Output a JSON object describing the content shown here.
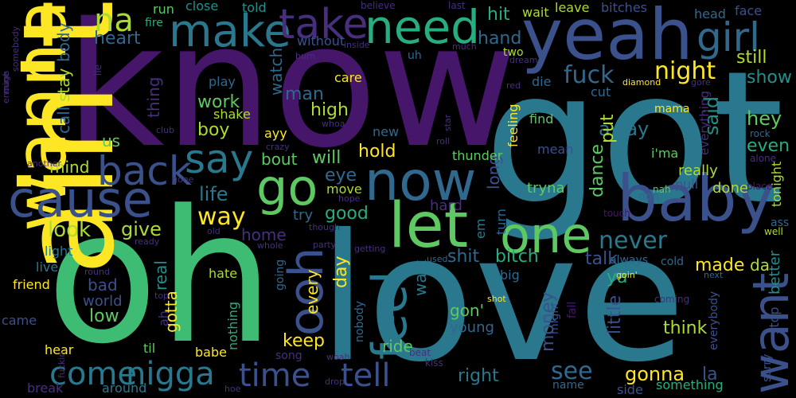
{
  "palette": {
    "background": "#000000",
    "dark_purple": "#46166b",
    "purple": "#472f7d",
    "indigo": "#3b518b",
    "blue": "#31688e",
    "teal": "#21908d",
    "teal_light": "#27ad81",
    "green": "#5ec962",
    "lime": "#addc30",
    "yellow": "#fde725"
  },
  "words": [
    {
      "text": "know",
      "color": "#46166b"
    },
    {
      "text": "got",
      "color": "#2a788e"
    },
    {
      "text": "oh",
      "color": "#3ebc73"
    },
    {
      "text": "love",
      "color": "#2a788e"
    },
    {
      "text": "yeah",
      "color": "#3b518b"
    },
    {
      "text": "ain't",
      "color": "#fde725"
    },
    {
      "text": "wanna",
      "color": "#fde725"
    },
    {
      "text": "cause",
      "color": "#3b518b"
    },
    {
      "text": "baby",
      "color": "#3b518b"
    },
    {
      "text": "let",
      "color": "#5ec962"
    },
    {
      "text": "one",
      "color": "#5ec962"
    },
    {
      "text": "now",
      "color": "#31688e"
    },
    {
      "text": "go",
      "color": "#5ec962"
    },
    {
      "text": "need",
      "color": "#27ad81"
    },
    {
      "text": "make",
      "color": "#2a788e"
    },
    {
      "text": "take",
      "color": "#472f7d"
    },
    {
      "text": "want",
      "color": "#3b518b"
    },
    {
      "text": "feel",
      "color": "#2a788e"
    },
    {
      "text": "ooh",
      "color": "#3b518b"
    },
    {
      "text": "say",
      "color": "#2a788e"
    },
    {
      "text": "back",
      "color": "#3b518b"
    },
    {
      "text": "girl",
      "color": "#31688e"
    },
    {
      "text": "na",
      "color": "#addc30"
    },
    {
      "text": "come",
      "color": "#2a788e"
    },
    {
      "text": "nigga",
      "color": "#2a788e"
    },
    {
      "text": "time",
      "color": "#3b518b"
    },
    {
      "text": "tell",
      "color": "#3b518b"
    },
    {
      "text": "never",
      "color": "#2a788e"
    },
    {
      "text": "night",
      "color": "#fde725"
    },
    {
      "text": "fuck",
      "color": "#31688e"
    },
    {
      "text": "way",
      "color": "#fde725"
    },
    {
      "text": "heart",
      "color": "#31688e"
    },
    {
      "text": "life",
      "color": "#2a788e"
    },
    {
      "text": "look",
      "color": "#addc30"
    },
    {
      "text": "give",
      "color": "#addc30"
    },
    {
      "text": "see",
      "color": "#31688e"
    },
    {
      "text": "gonna",
      "color": "#fde725"
    },
    {
      "text": "right",
      "color": "#2a788e"
    },
    {
      "text": "keep",
      "color": "#fde725"
    },
    {
      "text": "good",
      "color": "#27ad81"
    },
    {
      "text": "bitch",
      "color": "#27ad81"
    },
    {
      "text": "shit",
      "color": "#31688e"
    },
    {
      "text": "hold",
      "color": "#fde725"
    },
    {
      "text": "high",
      "color": "#addc30"
    },
    {
      "text": "man",
      "color": "#31688e"
    },
    {
      "text": "work",
      "color": "#5ec962"
    },
    {
      "text": "boy",
      "color": "#addc30"
    },
    {
      "text": "us",
      "color": "#5ec962"
    },
    {
      "text": "mind",
      "color": "#addc30"
    },
    {
      "text": "will",
      "color": "#5ec962"
    },
    {
      "text": "eye",
      "color": "#31688e"
    },
    {
      "text": "away",
      "color": "#2a788e"
    },
    {
      "text": "put",
      "color": "#addc30"
    },
    {
      "text": "said",
      "color": "#21908d"
    },
    {
      "text": "hey",
      "color": "#5ec962"
    },
    {
      "text": "even",
      "color": "#27ad81"
    },
    {
      "text": "still",
      "color": "#addc30"
    },
    {
      "text": "show",
      "color": "#21908d"
    },
    {
      "text": "hit",
      "color": "#27ad81"
    },
    {
      "text": "hand",
      "color": "#31688e"
    },
    {
      "text": "stay",
      "color": "#addc30"
    },
    {
      "text": "body",
      "color": "#31688e"
    },
    {
      "text": "call",
      "color": "#31688e"
    },
    {
      "text": "thing",
      "color": "#472f7d"
    },
    {
      "text": "watch",
      "color": "#31688e"
    },
    {
      "text": "dance",
      "color": "#5ec962"
    },
    {
      "text": "long",
      "color": "#3b518b"
    },
    {
      "text": "walk",
      "color": "#2a788e"
    },
    {
      "text": "talk",
      "color": "#3b518b"
    },
    {
      "text": "made",
      "color": "#fde725"
    },
    {
      "text": "little",
      "color": "#3b518b"
    },
    {
      "text": "money",
      "color": "#3b518b"
    },
    {
      "text": "think",
      "color": "#addc30"
    },
    {
      "text": "every",
      "color": "#fde725"
    },
    {
      "text": "day",
      "color": "#fde725"
    },
    {
      "text": "gotta",
      "color": "#fde725"
    },
    {
      "text": "real",
      "color": "#21908d"
    },
    {
      "text": "low",
      "color": "#5ec962"
    },
    {
      "text": "bad",
      "color": "#3b518b"
    },
    {
      "text": "world",
      "color": "#3b518b"
    },
    {
      "text": "home",
      "color": "#472f7d"
    },
    {
      "text": "bout",
      "color": "#5ec962"
    },
    {
      "text": "gon'",
      "color": "#5ec962"
    },
    {
      "text": "young",
      "color": "#31688e"
    },
    {
      "text": "ride",
      "color": "#5ec962"
    },
    {
      "text": "better",
      "color": "#21908d"
    },
    {
      "text": "stop",
      "color": "#3b518b"
    },
    {
      "text": "tonight",
      "color": "#addc30"
    },
    {
      "text": "la",
      "color": "#3b518b"
    },
    {
      "text": "ya",
      "color": "#27ad81"
    },
    {
      "text": "da",
      "color": "#addc30"
    },
    {
      "text": "done",
      "color": "#addc30"
    },
    {
      "text": "really",
      "color": "#addc30"
    },
    {
      "text": "pull",
      "color": "#3b518b"
    },
    {
      "text": "tryna",
      "color": "#5ec962"
    },
    {
      "text": "turn",
      "color": "#31688e"
    },
    {
      "text": "em",
      "color": "#2a788e"
    },
    {
      "text": "hard",
      "color": "#472f7d"
    },
    {
      "text": "try",
      "color": "#31688e"
    },
    {
      "text": "move",
      "color": "#addc30"
    },
    {
      "text": "thunder",
      "color": "#5ec962"
    },
    {
      "text": "new",
      "color": "#31688e"
    },
    {
      "text": "ayy",
      "color": "#fde725"
    },
    {
      "text": "shake",
      "color": "#addc30"
    },
    {
      "text": "play",
      "color": "#31688e"
    },
    {
      "text": "care",
      "color": "#fde725"
    },
    {
      "text": "die",
      "color": "#31688e"
    },
    {
      "text": "cut",
      "color": "#31688e"
    },
    {
      "text": "mama",
      "color": "#fde725"
    },
    {
      "text": "find",
      "color": "#5ec962"
    },
    {
      "text": "mean",
      "color": "#3b518b"
    },
    {
      "text": "everything",
      "color": "#472f7d"
    },
    {
      "text": "i'ma",
      "color": "#5ec962"
    },
    {
      "text": "don",
      "color": "#31688e"
    },
    {
      "text": "feeling",
      "color": "#fde725"
    },
    {
      "text": "friend",
      "color": "#fde725"
    },
    {
      "text": "live",
      "color": "#2a788e"
    },
    {
      "text": "light",
      "color": "#2a788e"
    },
    {
      "text": "came",
      "color": "#3b518b"
    },
    {
      "text": "hear",
      "color": "#fde725"
    },
    {
      "text": "babe",
      "color": "#fde725"
    },
    {
      "text": "til",
      "color": "#5ec962"
    },
    {
      "text": "ah",
      "color": "#472f7d"
    },
    {
      "text": "nothing",
      "color": "#27ad81"
    },
    {
      "text": "hate",
      "color": "#addc30"
    },
    {
      "text": "going",
      "color": "#31688e"
    },
    {
      "text": "nobody",
      "color": "#31688e"
    },
    {
      "text": "song",
      "color": "#472f7d"
    },
    {
      "text": "woah",
      "color": "#472f7d"
    },
    {
      "text": "beat",
      "color": "#472f7d"
    },
    {
      "text": "kiss",
      "color": "#472f7d"
    },
    {
      "text": "around",
      "color": "#2a788e"
    },
    {
      "text": "break",
      "color": "#472f7d"
    },
    {
      "text": "name",
      "color": "#31688e"
    },
    {
      "text": "side",
      "color": "#3b518b"
    },
    {
      "text": "something",
      "color": "#27ad81"
    },
    {
      "text": "everybody",
      "color": "#3b518b"
    },
    {
      "text": "sorry",
      "color": "#3b518b"
    },
    {
      "text": "might",
      "color": "#3b518b"
    },
    {
      "text": "fall",
      "color": "#46166b"
    },
    {
      "text": "left",
      "color": "#31688e"
    },
    {
      "text": "shot",
      "color": "#fde725"
    },
    {
      "text": "big",
      "color": "#31688e"
    },
    {
      "text": "used",
      "color": "#31688e"
    },
    {
      "text": "always",
      "color": "#31688e"
    },
    {
      "text": "cold",
      "color": "#31688e"
    },
    {
      "text": "goin'",
      "color": "#fde725"
    },
    {
      "text": "next",
      "color": "#31688e"
    },
    {
      "text": "coming",
      "color": "#472f7d"
    },
    {
      "text": "well",
      "color": "#addc30"
    },
    {
      "text": "ass",
      "color": "#31688e"
    },
    {
      "text": "place",
      "color": "#46166b"
    },
    {
      "text": "alone",
      "color": "#472f7d"
    },
    {
      "text": "rock",
      "color": "#31688e"
    },
    {
      "text": "touch",
      "color": "#46166b"
    },
    {
      "text": "nah",
      "color": "#5ec962"
    },
    {
      "text": "gone",
      "color": "#472f7d"
    },
    {
      "text": "though",
      "color": "#472f7d"
    },
    {
      "text": "getting",
      "color": "#472f7d"
    },
    {
      "text": "whole",
      "color": "#472f7d"
    },
    {
      "text": "party",
      "color": "#472f7d"
    },
    {
      "text": "round",
      "color": "#472f7d"
    },
    {
      "text": "fuckin",
      "color": "#472f7d"
    },
    {
      "text": "top",
      "color": "#472f7d"
    },
    {
      "text": "ready",
      "color": "#472f7d"
    },
    {
      "text": "old",
      "color": "#472f7d"
    },
    {
      "text": "hope",
      "color": "#472f7d"
    },
    {
      "text": "drop",
      "color": "#472f7d"
    },
    {
      "text": "hoe",
      "color": "#472f7d"
    },
    {
      "text": "crazy",
      "color": "#472f7d"
    },
    {
      "text": "club",
      "color": "#472f7d"
    },
    {
      "text": "whoa",
      "color": "#472f7d"
    },
    {
      "text": "roll",
      "color": "#472f7d"
    },
    {
      "text": "star",
      "color": "#472f7d"
    },
    {
      "text": "lie",
      "color": "#472f7d"
    },
    {
      "text": "another",
      "color": "#472f7d"
    },
    {
      "text": "mine",
      "color": "#472f7d"
    },
    {
      "text": "enough",
      "color": "#472f7d"
    },
    {
      "text": "somebody",
      "color": "#472f7d"
    },
    {
      "text": "run",
      "color": "#5ec962"
    },
    {
      "text": "fire",
      "color": "#27ad81"
    },
    {
      "text": "close",
      "color": "#21908d"
    },
    {
      "text": "told",
      "color": "#21908d"
    },
    {
      "text": "believe",
      "color": "#472f7d"
    },
    {
      "text": "last",
      "color": "#472f7d"
    },
    {
      "text": "wait",
      "color": "#addc30"
    },
    {
      "text": "leave",
      "color": "#addc30"
    },
    {
      "text": "bitches",
      "color": "#3b518b"
    },
    {
      "text": "head",
      "color": "#31688e"
    },
    {
      "text": "face",
      "color": "#3b518b"
    },
    {
      "text": "without",
      "color": "#3b518b"
    },
    {
      "text": "burn",
      "color": "#472f7d"
    },
    {
      "text": "inside",
      "color": "#472f7d"
    },
    {
      "text": "much",
      "color": "#472f7d"
    },
    {
      "text": "uh",
      "color": "#31688e"
    },
    {
      "text": "two",
      "color": "#addc30"
    },
    {
      "text": "dream",
      "color": "#472f7d"
    },
    {
      "text": "red",
      "color": "#472f7d"
    },
    {
      "text": "diamond",
      "color": "#fde725"
    },
    {
      "text": "gore",
      "color": "#472f7d"
    }
  ]
}
